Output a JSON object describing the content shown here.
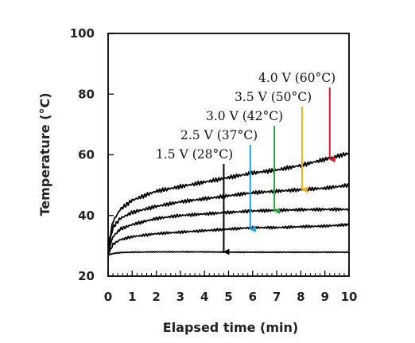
{
  "chart_data": {
    "type": "line",
    "title": "",
    "xlabel": "Elapsed time (min)",
    "ylabel": "Temperature (°C)",
    "xlim": [
      0,
      10
    ],
    "ylim": [
      20,
      100
    ],
    "xticks": [
      0,
      1,
      2,
      3,
      4,
      5,
      6,
      7,
      8,
      9,
      10
    ],
    "yticks": [
      20,
      40,
      60,
      80,
      100
    ],
    "grid": false,
    "legend": "none",
    "series": [
      {
        "name": "1.5 V (28°C)",
        "x": [
          0,
          0.3,
          0.6,
          1,
          2,
          3,
          4,
          5,
          6,
          7,
          8,
          9,
          10
        ],
        "values": [
          27,
          27.6,
          27.8,
          27.9,
          28,
          28,
          28,
          27.9,
          27.9,
          27.9,
          27.9,
          27.9,
          27.9
        ]
      },
      {
        "name": "2.5 V (37°C)",
        "x": [
          0,
          0.2,
          0.5,
          1,
          2,
          3,
          4,
          5,
          6,
          7,
          8,
          9,
          10
        ],
        "values": [
          27,
          30.5,
          32,
          33,
          34,
          34.5,
          35,
          35.5,
          36,
          36,
          36.3,
          36.5,
          37
        ]
      },
      {
        "name": "3.0 V (42°C)",
        "x": [
          0,
          0.2,
          0.5,
          1,
          2,
          3,
          4,
          5,
          6,
          7,
          8,
          9,
          10
        ],
        "values": [
          28,
          33,
          35.5,
          37,
          39,
          40,
          40.5,
          41,
          41.5,
          41.7,
          41.9,
          42,
          42
        ]
      },
      {
        "name": "3.5 V (50°C)",
        "x": [
          0,
          0.2,
          0.5,
          1,
          2,
          3,
          4,
          5,
          6,
          7,
          8,
          9,
          10
        ],
        "values": [
          29,
          36,
          39,
          41,
          43,
          44.5,
          45.5,
          46.5,
          47.5,
          48,
          48.5,
          49,
          50
        ]
      },
      {
        "name": "4.0 V (60°C)",
        "x": [
          0,
          0.2,
          0.5,
          1,
          2,
          3,
          4,
          5,
          6,
          7,
          8,
          9,
          10
        ],
        "values": [
          30,
          38,
          42,
          45,
          48,
          49.5,
          51,
          52.5,
          54,
          55,
          56.5,
          58.5,
          60.5
        ]
      }
    ],
    "annotations": [
      {
        "text": "1.5 V (28°C)",
        "arrow_x": 4.8,
        "arrow_to": 28,
        "color": "#000000"
      },
      {
        "text": "2.5 V (37°C)",
        "arrow_x": 5.9,
        "arrow_to": 35.5,
        "color": "#1ea0e0"
      },
      {
        "text": "3.0 V (42°C)",
        "arrow_x": 6.9,
        "arrow_to": 41.5,
        "color": "#2aa84a"
      },
      {
        "text": "3.5 V (50°C)",
        "arrow_x": 8.05,
        "arrow_to": 48.5,
        "color": "#f2b21c"
      },
      {
        "text": "4.0 V (60°C)",
        "arrow_x": 9.2,
        "arrow_to": 58.5,
        "color": "#d0202a"
      }
    ]
  }
}
